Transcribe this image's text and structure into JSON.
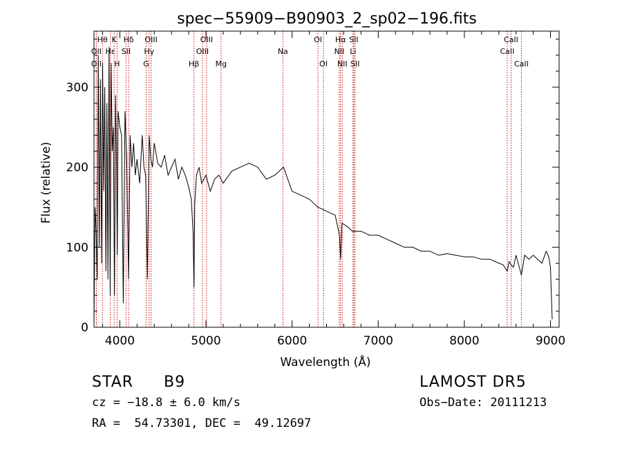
{
  "chart_data": {
    "type": "line",
    "title": "spec−55909−B90903_2_sp02−196.fits",
    "xlabel": "Wavelength (Å)",
    "ylabel": "Flux (relative)",
    "xlim": [
      3700,
      9100
    ],
    "ylim": [
      0,
      370
    ],
    "xticks": [
      4000,
      5000,
      6000,
      7000,
      8000,
      9000
    ],
    "yticks": [
      0,
      100,
      200,
      300
    ],
    "grid": false,
    "line_color": "#000000",
    "marker_color": "#cc0000",
    "series": [
      {
        "x": [
          3700,
          3712,
          3725,
          3738,
          3750,
          3762,
          3775,
          3788,
          3800,
          3812,
          3825,
          3838,
          3850,
          3862,
          3875,
          3888,
          3900,
          3912,
          3925,
          3938,
          3950,
          3962,
          3970,
          3980,
          4000,
          4020,
          4040,
          4060,
          4080,
          4101,
          4120,
          4140,
          4160,
          4180,
          4200,
          4230,
          4260,
          4280,
          4300,
          4320,
          4340,
          4360,
          4380,
          4400,
          4440,
          4480,
          4520,
          4560,
          4600,
          4640,
          4680,
          4720,
          4760,
          4800,
          4830,
          4850,
          4861,
          4870,
          4890,
          4920,
          4950,
          5000,
          5050,
          5100,
          5150,
          5200,
          5300,
          5400,
          5500,
          5600,
          5700,
          5800,
          5900,
          6000,
          6100,
          6200,
          6300,
          6400,
          6500,
          6550,
          6563,
          6580,
          6650,
          6700,
          6800,
          6900,
          7000,
          7100,
          7200,
          7300,
          7400,
          7500,
          7600,
          7700,
          7800,
          7900,
          8000,
          8100,
          8200,
          8300,
          8400,
          8450,
          8498,
          8520,
          8542,
          8570,
          8600,
          8662,
          8700,
          8750,
          8800,
          8850,
          8900,
          8950,
          8980,
          9000,
          9010,
          9020
        ],
        "y": [
          5,
          150,
          120,
          60,
          340,
          100,
          310,
          80,
          330,
          170,
          300,
          70,
          280,
          60,
          350,
          40,
          330,
          220,
          250,
          40,
          290,
          200,
          90,
          270,
          250,
          240,
          30,
          270,
          210,
          60,
          240,
          200,
          230,
          190,
          210,
          180,
          240,
          200,
          190,
          60,
          240,
          210,
          200,
          230,
          205,
          200,
          215,
          190,
          200,
          210,
          185,
          200,
          190,
          175,
          160,
          120,
          50,
          155,
          190,
          200,
          180,
          190,
          170,
          185,
          190,
          180,
          195,
          200,
          205,
          200,
          185,
          190,
          200,
          170,
          165,
          160,
          150,
          145,
          140,
          115,
          85,
          130,
          125,
          120,
          120,
          115,
          115,
          110,
          105,
          100,
          100,
          95,
          95,
          90,
          92,
          90,
          88,
          88,
          85,
          85,
          80,
          78,
          70,
          82,
          78,
          75,
          90,
          65,
          90,
          85,
          90,
          85,
          80,
          95,
          88,
          75,
          40,
          10
        ]
      }
    ],
    "lines": [
      {
        "label": "Hθ",
        "wl": 3798,
        "row": 0
      },
      {
        "label": "K",
        "wl": 3934,
        "row": 0
      },
      {
        "label": "Hδ",
        "wl": 4102,
        "row": 0
      },
      {
        "label": "OIII",
        "wl": 4363,
        "row": 0
      },
      {
        "label": "OIII",
        "wl": 5007,
        "row": 0
      },
      {
        "label": "OI",
        "wl": 6300,
        "row": 0
      },
      {
        "label": "Hα",
        "wl": 6563,
        "row": 0
      },
      {
        "label": "SII",
        "wl": 6716,
        "row": 0
      },
      {
        "label": "CaII",
        "wl": 8542,
        "row": 0
      },
      {
        "label": "OII",
        "wl": 3727,
        "row": 1
      },
      {
        "label": "Hε",
        "wl": 3889,
        "row": 1
      },
      {
        "label": "SII",
        "wl": 4072,
        "row": 1
      },
      {
        "label": "Hγ",
        "wl": 4340,
        "row": 1
      },
      {
        "label": "OIII",
        "wl": 4959,
        "row": 1
      },
      {
        "label": "Na",
        "wl": 5893,
        "row": 1
      },
      {
        "label": "NII",
        "wl": 6548,
        "row": 1
      },
      {
        "label": "Li",
        "wl": 6708,
        "row": 1
      },
      {
        "label": "CaII",
        "wl": 8498,
        "row": 1
      },
      {
        "label": "OII",
        "wl": 3727,
        "row": 2
      },
      {
        "label": "H",
        "wl": 3968,
        "row": 2
      },
      {
        "label": "G",
        "wl": 4305,
        "row": 2
      },
      {
        "label": "Hβ",
        "wl": 4861,
        "row": 2
      },
      {
        "label": "Mg",
        "wl": 5175,
        "row": 2
      },
      {
        "label": "OI",
        "wl": 6364,
        "row": 2
      },
      {
        "label": "NII",
        "wl": 6583,
        "row": 2
      },
      {
        "label": "SII",
        "wl": 6731,
        "row": 2
      },
      {
        "label": "CaII",
        "wl": 8662,
        "row": 2
      }
    ]
  },
  "info": {
    "class_label": "STAR",
    "subclass": "B9",
    "survey": "LAMOST DR5",
    "cz_text": "cz = −18.8 ± 6.0 km/s",
    "obs_date": "Obs−Date: 20111213",
    "coords": "RA =  54.73301, DEC =  49.12697"
  }
}
